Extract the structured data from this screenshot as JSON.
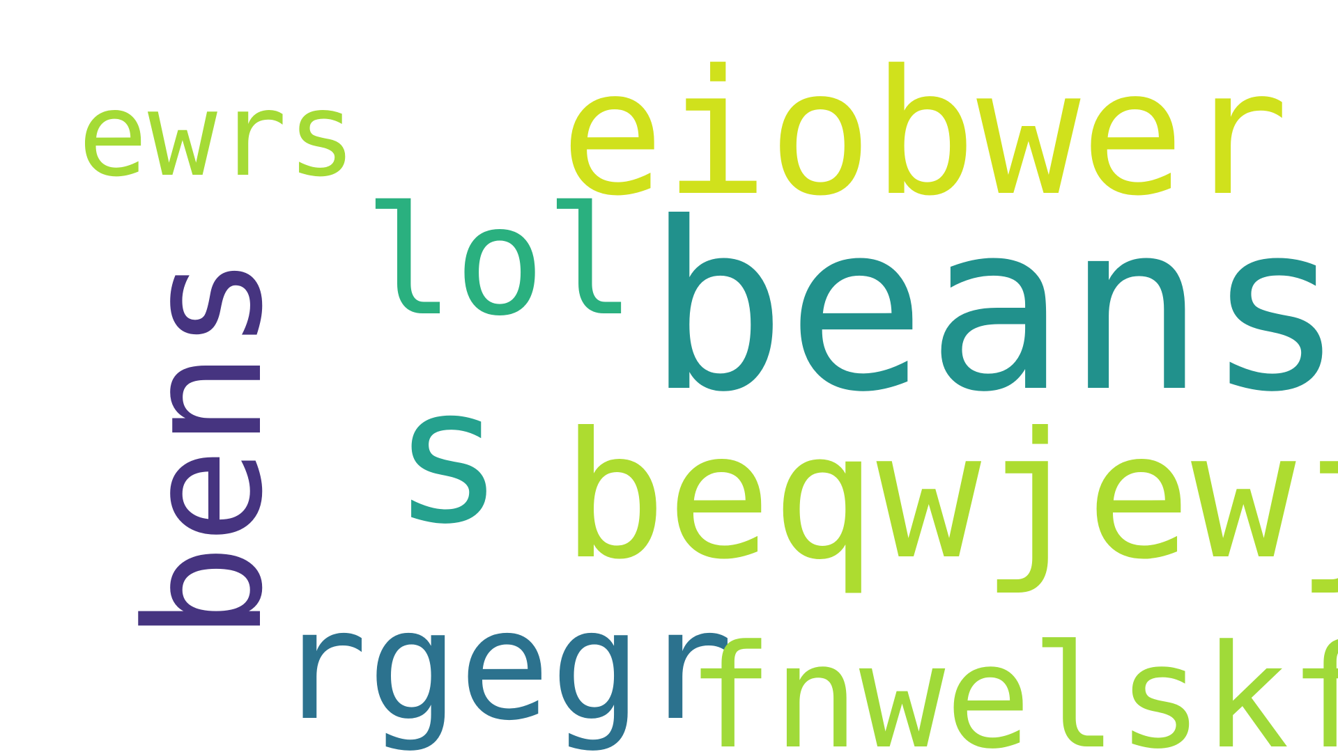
{
  "words": [
    {
      "text": "ewrs",
      "color": "#a5db36"
    },
    {
      "text": "eiobwer",
      "color": "#d0e11c"
    },
    {
      "text": "lol",
      "color": "#2ab07f"
    },
    {
      "text": "beans",
      "color": "#21918c"
    },
    {
      "text": "s",
      "color": "#25a18e"
    },
    {
      "text": "beqwjewj",
      "color": "#addc30"
    },
    {
      "text": "rgegr",
      "color": "#2c728e"
    },
    {
      "text": "fnwelskf",
      "color": "#a0da39"
    },
    {
      "text": "bens",
      "color": "#463480"
    }
  ]
}
